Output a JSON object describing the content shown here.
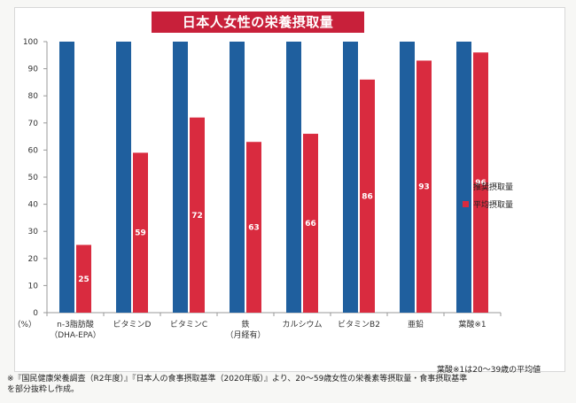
{
  "chart_data": {
    "type": "bar",
    "title": "日本人女性の栄養摂取量",
    "ylabel": "（%）",
    "ylim": [
      0,
      100
    ],
    "yticks": [
      "0",
      "10",
      "20",
      "30",
      "40",
      "50",
      "60",
      "70",
      "80",
      "90",
      "100"
    ],
    "categories": [
      [
        "n-3脂肪酸",
        "（DHA-EPA）"
      ],
      [
        "ビタミンD"
      ],
      [
        "ビタミンC"
      ],
      [
        "鉄",
        "（月経有）"
      ],
      [
        "カルシウム"
      ],
      [
        "ビタミンB2"
      ],
      [
        "亜鉛"
      ],
      [
        "葉酸※1"
      ]
    ],
    "series": [
      {
        "name": "推奨摂取量",
        "color": "#1f5f9e",
        "values": [
          100,
          100,
          100,
          100,
          100,
          100,
          100,
          100
        ]
      },
      {
        "name": "平均摂取量",
        "color": "#d92b3f",
        "values": [
          25,
          59,
          72,
          63,
          66,
          86,
          93,
          96
        ],
        "labels": [
          "25",
          "59",
          "72",
          "63",
          "66",
          "86",
          "93",
          "96"
        ]
      }
    ],
    "legend_position": "right"
  },
  "note": "葉酸※1は20～39歳の平均値",
  "footnote": [
    "※『国民健康栄養調査（R2年度）』『日本人の食事摂取基準（2020年版）』より、20～59歳女性の栄養素等摂取量・食事摂取基準",
    "を部分抜粋し作成。"
  ]
}
